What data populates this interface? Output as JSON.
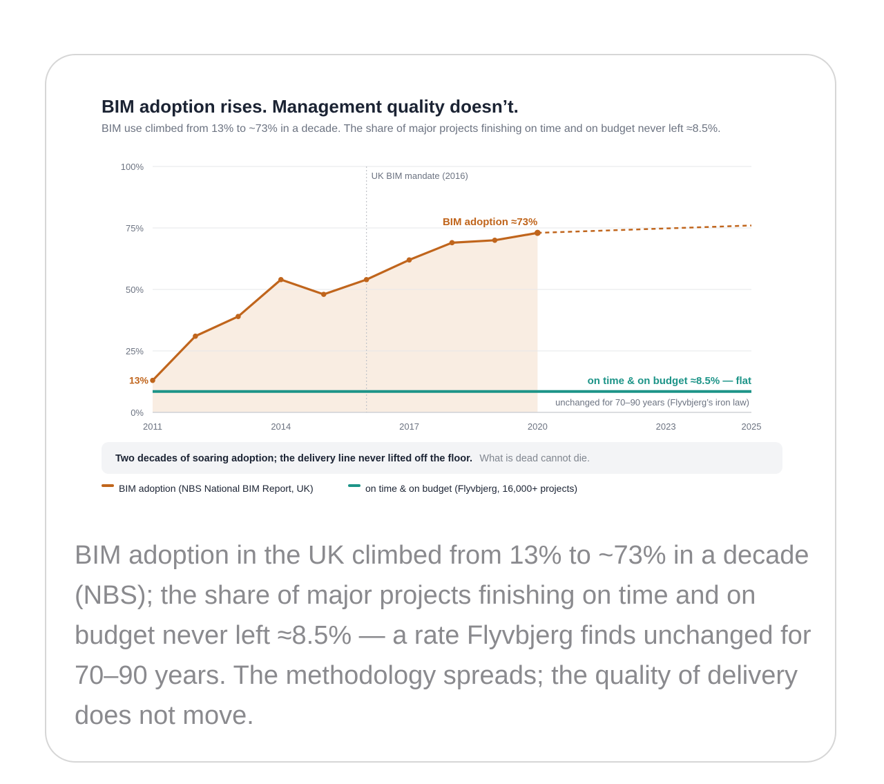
{
  "title": "BIM adoption rises. Management quality doesn’t.",
  "subtitle": "BIM use climbed from 13% to ~73% in a decade. The share of major projects finishing on time and on budget never left ≈8.5%.",
  "callout": {
    "strong": "Two decades of soaring adoption; the delivery line never lifted off the floor.",
    "muted": "What is dead cannot die."
  },
  "legend": [
    {
      "label": "BIM adoption (NBS National BIM Report, UK)",
      "color": "#c0651c"
    },
    {
      "label": "on time & on budget (Flyvbjerg, 16,000+ projects)",
      "color": "#1d9488"
    }
  ],
  "caption": "BIM adoption in the UK climbed from 13% to ~73% in a decade (NBS); the share of major projects finishing on time and on budget never left ≈8.5% — a rate Flyvbjerg finds unchanged for 70–90 years. The methodology spreads; the quality of delivery does not move.",
  "chart_data": {
    "type": "line",
    "title": "BIM adoption rises. Management quality doesn’t.",
    "xlim": [
      2011,
      2025
    ],
    "ylim": [
      0,
      100
    ],
    "x_ticks": [
      2011,
      2014,
      2017,
      2020,
      2023,
      2025
    ],
    "x_tick_labels": [
      "2011",
      "2014",
      "2017",
      "2020",
      "2023",
      "2025"
    ],
    "y_ticks": [
      0,
      25,
      50,
      75,
      100
    ],
    "y_tick_labels": [
      "0%",
      "25%",
      "50%",
      "75%",
      "100%"
    ],
    "grid": true,
    "series": [
      {
        "name": "BIM adoption (NBS National BIM Report, UK)",
        "color": "#c0651c",
        "area_fill": "#f9ede2",
        "x": [
          2011,
          2012,
          2013,
          2014,
          2015,
          2016,
          2017,
          2018,
          2019,
          2020
        ],
        "y": [
          13,
          31,
          39,
          54,
          48,
          54,
          62,
          69,
          70,
          73
        ],
        "projection": {
          "x": [
            2020,
            2025
          ],
          "y": [
            73,
            76
          ],
          "style": "dashed"
        },
        "start_label": "13%",
        "end_label": "BIM adoption ≈73%"
      },
      {
        "name": "on time & on budget (Flyvbjerg, 16,000+ projects)",
        "color": "#1d9488",
        "x": [
          2011,
          2025
        ],
        "y": [
          8.5,
          8.5
        ],
        "label": "on time & on budget ≈8.5% — flat",
        "sublabel": "unchanged for 70–90 years (Flyvbjerg’s iron law)"
      }
    ],
    "annotations": [
      {
        "x": 2016,
        "text": "UK BIM mandate (2016)",
        "style": "dotted-vertical"
      }
    ]
  }
}
